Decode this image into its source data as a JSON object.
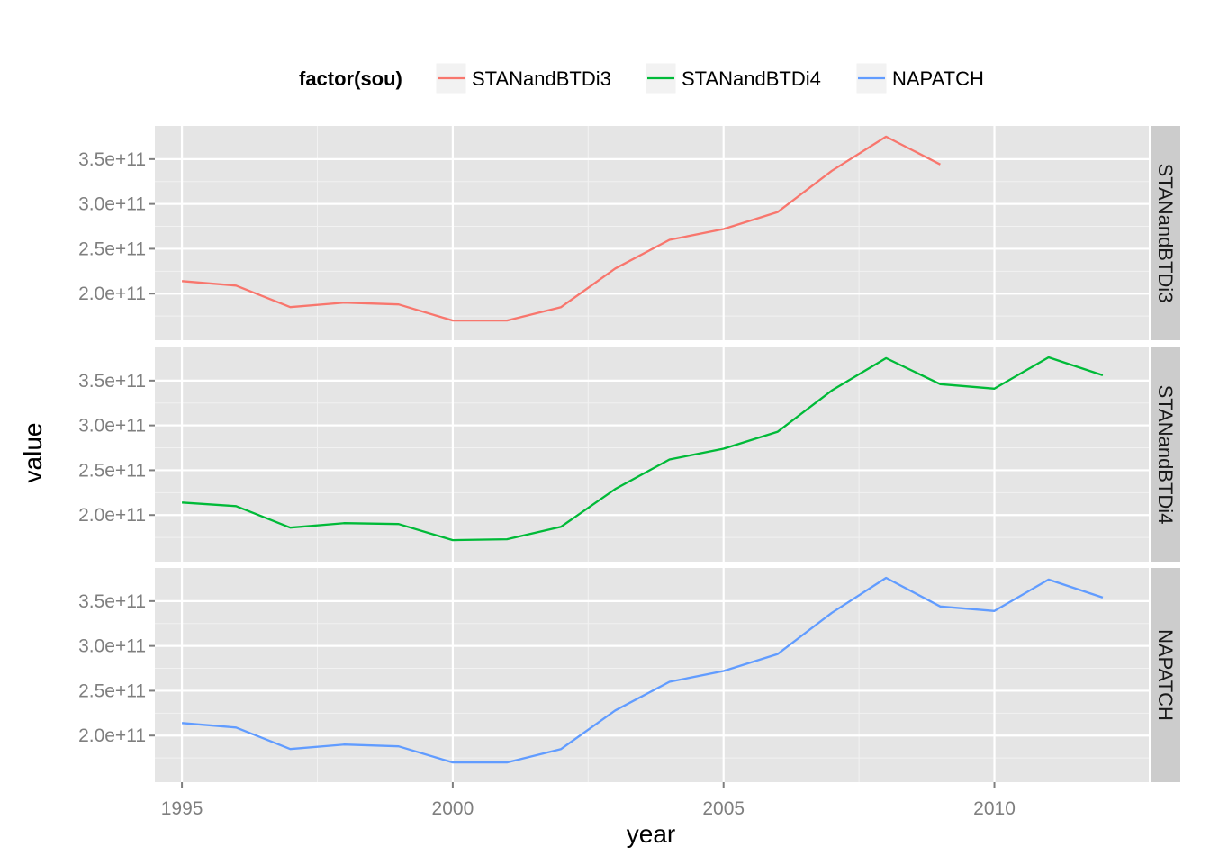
{
  "chart_data": {
    "type": "line",
    "xlabel": "year",
    "ylabel": "value",
    "xlim": [
      1994.5,
      2012.85
    ],
    "ylim": [
      148000000000.0,
      387000000000.0
    ],
    "x_ticks": [
      1995,
      2000,
      2005,
      2010
    ],
    "x_tick_labels": [
      "1995",
      "2000",
      "2005",
      "2010"
    ],
    "y_ticks": [
      200000000000.0,
      250000000000.0,
      300000000000.0,
      350000000000.0
    ],
    "y_tick_labels": [
      "2.0e+11",
      "2.5e+11",
      "3.0e+11",
      "3.5e+11"
    ],
    "grid": true,
    "facets": "rows by factor(sou)",
    "legend": {
      "title": "factor(sou)",
      "position": "top",
      "items": [
        "STANandBTDi3",
        "STANandBTDi4",
        "NAPATCH"
      ]
    },
    "series": [
      {
        "name": "STANandBTDi3",
        "color": "#F8766D",
        "x": [
          1995,
          1996,
          1997,
          1998,
          1999,
          2000,
          2001,
          2002,
          2003,
          2004,
          2005,
          2006,
          2007,
          2008,
          2009
        ],
        "values": [
          214000000000.0,
          209000000000.0,
          185000000000.0,
          190000000000.0,
          188000000000.0,
          170000000000.0,
          170000000000.0,
          185000000000.0,
          228000000000.0,
          260000000000.0,
          272000000000.0,
          291000000000.0,
          337000000000.0,
          375000000000.0,
          344000000000.0
        ]
      },
      {
        "name": "STANandBTDi4",
        "color": "#00BA38",
        "x": [
          1995,
          1996,
          1997,
          1998,
          1999,
          2000,
          2001,
          2002,
          2003,
          2004,
          2005,
          2006,
          2007,
          2008,
          2009,
          2010,
          2011,
          2012
        ],
        "values": [
          214000000000.0,
          210000000000.0,
          186000000000.0,
          191000000000.0,
          190000000000.0,
          172000000000.0,
          173000000000.0,
          187000000000.0,
          229000000000.0,
          262000000000.0,
          274000000000.0,
          293000000000.0,
          339000000000.0,
          375000000000.0,
          346000000000.0,
          341000000000.0,
          376000000000.0,
          356000000000.0
        ]
      },
      {
        "name": "NAPATCH",
        "color": "#619CFF",
        "x": [
          1995,
          1996,
          1997,
          1998,
          1999,
          2000,
          2001,
          2002,
          2003,
          2004,
          2005,
          2006,
          2007,
          2008,
          2009,
          2010,
          2011,
          2012
        ],
        "values": [
          214000000000.0,
          209000000000.0,
          185000000000.0,
          190000000000.0,
          188000000000.0,
          170000000000.0,
          170000000000.0,
          185000000000.0,
          228000000000.0,
          260000000000.0,
          272000000000.0,
          291000000000.0,
          337000000000.0,
          376000000000.0,
          344000000000.0,
          339000000000.0,
          374000000000.0,
          354000000000.0
        ]
      }
    ],
    "colors": {
      "panel_background": "#E5E5E5",
      "grid_major": "#FFFFFF",
      "grid_minor": "#F2F2F2",
      "strip_background": "#CCCCCC",
      "tick_text": "#7F7F7F"
    }
  }
}
